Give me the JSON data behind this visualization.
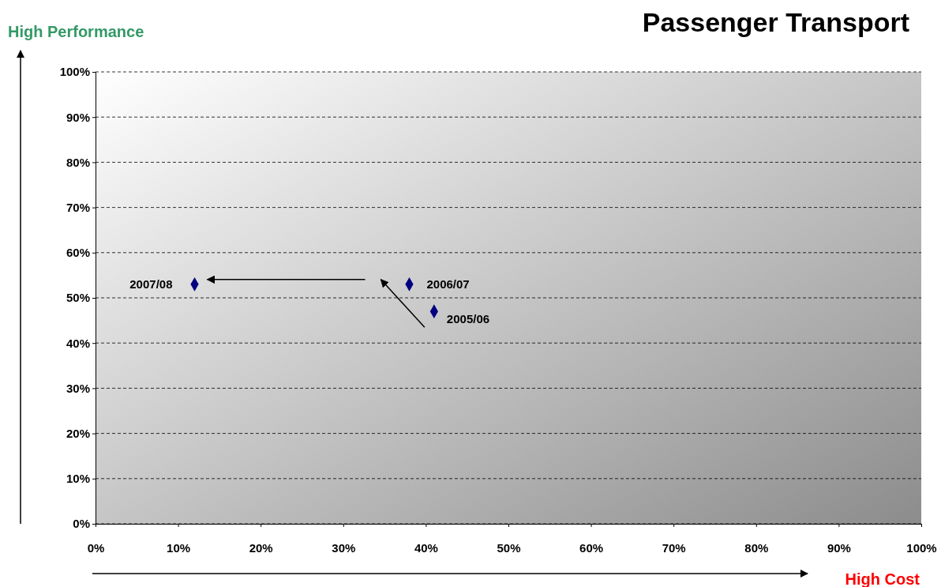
{
  "chart_data": {
    "type": "scatter",
    "title": "Passenger Transport",
    "xlabel": "High Cost",
    "ylabel": "High Performance",
    "x": [
      12,
      38,
      41
    ],
    "series": [
      {
        "color": "#000080",
        "values": [
          53,
          53,
          47
        ]
      }
    ],
    "marker": "diamond",
    "grid": "y",
    "xlim": [
      0,
      100
    ],
    "ylim": [
      0,
      100
    ],
    "xticks": [
      {
        "value": 0,
        "label": "0%"
      },
      {
        "value": 10,
        "label": "10%"
      },
      {
        "value": 20,
        "label": "20%"
      },
      {
        "value": 30,
        "label": "30%"
      },
      {
        "value": 40,
        "label": "40%"
      },
      {
        "value": 50,
        "label": "50%"
      },
      {
        "value": 60,
        "label": "60%"
      },
      {
        "value": 70,
        "label": "70%"
      },
      {
        "value": 80,
        "label": "80%"
      },
      {
        "value": 90,
        "label": "90%"
      },
      {
        "value": 100,
        "label": "100%"
      }
    ],
    "yticks": [
      {
        "value": 0,
        "label": "0%"
      },
      {
        "value": 10,
        "label": "10%"
      },
      {
        "value": 20,
        "label": "20%"
      },
      {
        "value": 30,
        "label": "30%"
      },
      {
        "value": 40,
        "label": "40%"
      },
      {
        "value": 50,
        "label": "50%"
      },
      {
        "value": 60,
        "label": "60%"
      },
      {
        "value": 70,
        "label": "70%"
      },
      {
        "value": 80,
        "label": "80%"
      },
      {
        "value": 90,
        "label": "90%"
      },
      {
        "value": 100,
        "label": "100%"
      }
    ],
    "annotations": [
      {
        "text": "2007/08",
        "x": 12,
        "y": 53
      },
      {
        "text": "2006/07",
        "x": 38,
        "y": 53
      },
      {
        "text": "2005/06",
        "x": 41,
        "y": 47
      }
    ]
  }
}
